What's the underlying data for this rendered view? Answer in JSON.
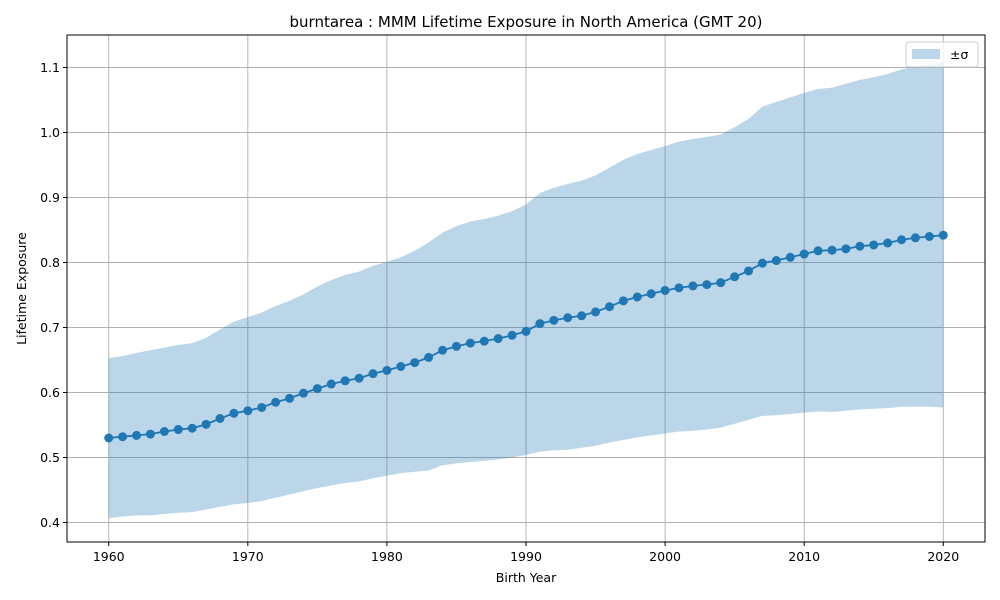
{
  "chart_data": {
    "type": "line",
    "title": "burntarea : MMM Lifetime Exposure in North America (GMT 20)",
    "xlabel": "Birth Year",
    "ylabel": "Lifetime Exposure",
    "xlim": [
      1957,
      2023
    ],
    "ylim": [
      0.37,
      1.15
    ],
    "xticks": [
      1960,
      1970,
      1980,
      1990,
      2000,
      2010,
      2020
    ],
    "yticks": [
      0.4,
      0.5,
      0.6,
      0.7,
      0.8,
      0.9,
      1.0,
      1.1
    ],
    "xtick_labels": [
      "1960",
      "1970",
      "1980",
      "1990",
      "2000",
      "2010",
      "2020"
    ],
    "ytick_labels": [
      "0.4",
      "0.5",
      "0.6",
      "0.7",
      "0.8",
      "0.9",
      "1.0",
      "1.1"
    ],
    "grid": true,
    "legend": {
      "placement": "top-right",
      "entries": [
        "±σ"
      ]
    },
    "colors": {
      "line": "#1f77b4",
      "band": "#1f77b4",
      "grid": "#b0b0b0"
    },
    "band_opacity": 0.3,
    "x": [
      1960,
      1961,
      1962,
      1963,
      1964,
      1965,
      1966,
      1967,
      1968,
      1969,
      1970,
      1971,
      1972,
      1973,
      1974,
      1975,
      1976,
      1977,
      1978,
      1979,
      1980,
      1981,
      1982,
      1983,
      1984,
      1985,
      1986,
      1987,
      1988,
      1989,
      1990,
      1991,
      1992,
      1993,
      1994,
      1995,
      1996,
      1997,
      1998,
      1999,
      2000,
      2001,
      2002,
      2003,
      2004,
      2005,
      2006,
      2007,
      2008,
      2009,
      2010,
      2011,
      2012,
      2013,
      2014,
      2015,
      2016,
      2017,
      2018,
      2019,
      2020
    ],
    "series": [
      {
        "values": [
          0.53,
          0.532,
          0.534,
          0.536,
          0.54,
          0.543,
          0.545,
          0.551,
          0.56,
          0.568,
          0.572,
          0.577,
          0.585,
          0.591,
          0.599,
          0.606,
          0.613,
          0.618,
          0.622,
          0.629,
          0.634,
          0.64,
          0.646,
          0.654,
          0.665,
          0.671,
          0.676,
          0.679,
          0.683,
          0.688,
          0.694,
          0.706,
          0.711,
          0.715,
          0.718,
          0.724,
          0.732,
          0.741,
          0.747,
          0.752,
          0.757,
          0.761,
          0.764,
          0.766,
          0.769,
          0.778,
          0.787,
          0.799,
          0.803,
          0.808,
          0.813,
          0.818,
          0.819,
          0.821,
          0.825,
          0.827,
          0.83,
          0.835,
          0.838,
          0.84,
          0.842
        ],
        "lower": [
          0.407,
          0.409,
          0.411,
          0.411,
          0.413,
          0.415,
          0.416,
          0.42,
          0.424,
          0.428,
          0.43,
          0.433,
          0.438,
          0.443,
          0.448,
          0.453,
          0.457,
          0.461,
          0.463,
          0.468,
          0.472,
          0.476,
          0.478,
          0.48,
          0.488,
          0.491,
          0.493,
          0.495,
          0.497,
          0.5,
          0.504,
          0.509,
          0.511,
          0.512,
          0.515,
          0.518,
          0.523,
          0.527,
          0.531,
          0.534,
          0.537,
          0.54,
          0.541,
          0.543,
          0.546,
          0.552,
          0.558,
          0.564,
          0.565,
          0.567,
          0.569,
          0.571,
          0.57,
          0.572,
          0.574,
          0.575,
          0.576,
          0.578,
          0.578,
          0.578,
          0.577
        ],
        "upper": [
          0.653,
          0.656,
          0.661,
          0.665,
          0.669,
          0.673,
          0.676,
          0.684,
          0.697,
          0.709,
          0.716,
          0.723,
          0.733,
          0.741,
          0.751,
          0.763,
          0.773,
          0.781,
          0.786,
          0.795,
          0.801,
          0.808,
          0.818,
          0.831,
          0.846,
          0.856,
          0.863,
          0.867,
          0.872,
          0.879,
          0.889,
          0.907,
          0.915,
          0.921,
          0.926,
          0.934,
          0.946,
          0.958,
          0.967,
          0.973,
          0.979,
          0.986,
          0.99,
          0.993,
          0.997,
          1.008,
          1.021,
          1.04,
          1.047,
          1.054,
          1.061,
          1.067,
          1.069,
          1.075,
          1.081,
          1.085,
          1.09,
          1.097,
          1.102,
          1.105,
          1.108
        ]
      }
    ]
  }
}
